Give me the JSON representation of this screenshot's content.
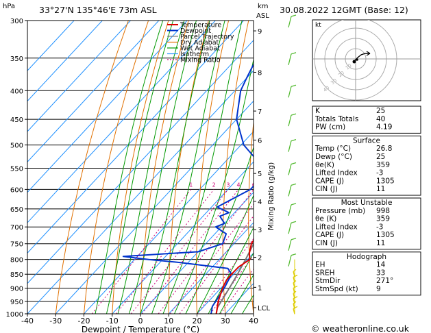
{
  "header": {
    "location": "33°27'N 135°46'E 73m ASL",
    "datetime": "30.08.2022 12GMT (Base: 12)"
  },
  "footer": {
    "copyright": "© weatheronline.co.uk"
  },
  "chart_data": {
    "type": "skew-t",
    "xlabel": "Dewpoint / Temperature (°C)",
    "ylabel_left": "hPa",
    "ylabel_right_top": "km",
    "ylabel_right_sub": "ASL",
    "mixing_ratio_label": "Mixing Ratio (g/kg)",
    "xlim": [
      -40,
      40
    ],
    "ylim": [
      1000,
      300
    ],
    "x_ticks": [
      -40,
      -30,
      -20,
      -10,
      0,
      10,
      20,
      30,
      40
    ],
    "p_ticks": [
      300,
      350,
      400,
      450,
      500,
      550,
      600,
      650,
      700,
      750,
      800,
      850,
      900,
      950,
      1000
    ],
    "km_ticks": [
      {
        "label": "9",
        "p": 313
      },
      {
        "label": "8",
        "p": 371
      },
      {
        "label": "7",
        "p": 435
      },
      {
        "label": "6",
        "p": 490
      },
      {
        "label": "5",
        "p": 562
      },
      {
        "label": "4",
        "p": 630
      },
      {
        "label": "3",
        "p": 708
      },
      {
        "label": "2",
        "p": 793
      },
      {
        "label": "1",
        "p": 897
      },
      {
        "label": "LCL",
        "p": 975
      }
    ],
    "mixing_ratio_values": [
      "1",
      "2",
      "3",
      "4",
      "6",
      "8",
      "10",
      "15",
      "20",
      "25"
    ],
    "legend": [
      {
        "name": "Temperature",
        "color": "#dd0000"
      },
      {
        "name": "Dewpoint",
        "color": "#0033cc"
      },
      {
        "name": "Parcel Trajectory",
        "color": "#777777"
      },
      {
        "name": "Dry Adiabat",
        "color": "#e07000"
      },
      {
        "name": "Wet Adiabat",
        "color": "#009900"
      },
      {
        "name": "Isotherm",
        "color": "#1e90ff"
      },
      {
        "name": "Mixing Ratio",
        "color": "#cc0077"
      }
    ],
    "series": [
      {
        "name": "Temperature",
        "points": [
          [
            1000,
            26.8
          ],
          [
            950,
            23.4
          ],
          [
            900,
            20.6
          ],
          [
            870,
            19.3
          ],
          [
            850,
            19.2
          ],
          [
            825,
            19.3
          ],
          [
            800,
            20.8
          ],
          [
            780,
            18.6
          ],
          [
            750,
            16.2
          ],
          [
            700,
            14.5
          ],
          [
            650,
            11.5
          ],
          [
            600,
            7.5
          ],
          [
            550,
            2.5
          ],
          [
            520,
            -1.0
          ],
          [
            500,
            -2.0
          ],
          [
            450,
            -7.5
          ],
          [
            400,
            -14.0
          ],
          [
            350,
            -21.5
          ],
          [
            300,
            -30.5
          ]
        ]
      },
      {
        "name": "Dewpoint",
        "points": [
          [
            1000,
            25
          ],
          [
            970,
            23
          ],
          [
            950,
            22.5
          ],
          [
            900,
            21.2
          ],
          [
            850,
            19.2
          ],
          [
            830,
            16
          ],
          [
            810,
            -3
          ],
          [
            800,
            -15
          ],
          [
            790,
            -25
          ],
          [
            775,
            0
          ],
          [
            750,
            6
          ],
          [
            720,
            4
          ],
          [
            700,
            -2
          ],
          [
            690,
            0
          ],
          [
            670,
            -4
          ],
          [
            660,
            -2
          ],
          [
            645,
            -8
          ],
          [
            600,
            -2
          ],
          [
            550,
            -2
          ],
          [
            530,
            -10
          ],
          [
            500,
            -19
          ],
          [
            450,
            -30
          ],
          [
            400,
            -38
          ],
          [
            380,
            -40
          ],
          [
            350,
            -43
          ],
          [
            335,
            -40
          ],
          [
            333,
            -46
          ],
          [
            320,
            -44
          ],
          [
            305,
            -49
          ],
          [
            300,
            -51
          ]
        ]
      },
      {
        "name": "Parcel Trajectory",
        "points": [
          [
            1000,
            26.8
          ],
          [
            975,
            25.2
          ],
          [
            900,
            23.0
          ],
          [
            850,
            21.3
          ],
          [
            800,
            19.3
          ],
          [
            750,
            17.0
          ],
          [
            700,
            14.7
          ],
          [
            650,
            12.0
          ],
          [
            600,
            9.0
          ],
          [
            550,
            5.5
          ],
          [
            500,
            1.2
          ],
          [
            450,
            -3.8
          ],
          [
            400,
            -10.0
          ],
          [
            350,
            -17.5
          ],
          [
            300,
            -27.0
          ]
        ]
      }
    ]
  },
  "hodograph": {
    "title": "kt",
    "rings": [
      "10",
      "20",
      "30",
      "40"
    ]
  },
  "indices": {
    "rows": [
      {
        "label": "K",
        "value": "25"
      },
      {
        "label": "Totals Totals",
        "value": "40"
      },
      {
        "label": "PW (cm)",
        "value": "4.19"
      }
    ]
  },
  "surface": {
    "title": "Surface",
    "rows": [
      {
        "label": "Temp (°C)",
        "value": "26.8"
      },
      {
        "label": "Dewp (°C)",
        "value": "25"
      },
      {
        "label": "θe(K)",
        "value": "359"
      },
      {
        "label": "Lifted Index",
        "value": "-3"
      },
      {
        "label": "CAPE (J)",
        "value": "1305"
      },
      {
        "label": "CIN (J)",
        "value": "11"
      }
    ]
  },
  "unstable": {
    "title": "Most Unstable",
    "rows": [
      {
        "label": "Pressure (mb)",
        "value": "998"
      },
      {
        "label": "θe (K)",
        "value": "359"
      },
      {
        "label": "Lifted Index",
        "value": "-3"
      },
      {
        "label": "CAPE (J)",
        "value": "1305"
      },
      {
        "label": "CIN (J)",
        "value": "11"
      }
    ]
  },
  "hodograph_table": {
    "title": "Hodograph",
    "rows": [
      {
        "label": "EH",
        "value": "14"
      },
      {
        "label": "SREH",
        "value": "33"
      },
      {
        "label": "StmDir",
        "value": "271°"
      },
      {
        "label": "StmSpd (kt)",
        "value": "9"
      }
    ]
  }
}
